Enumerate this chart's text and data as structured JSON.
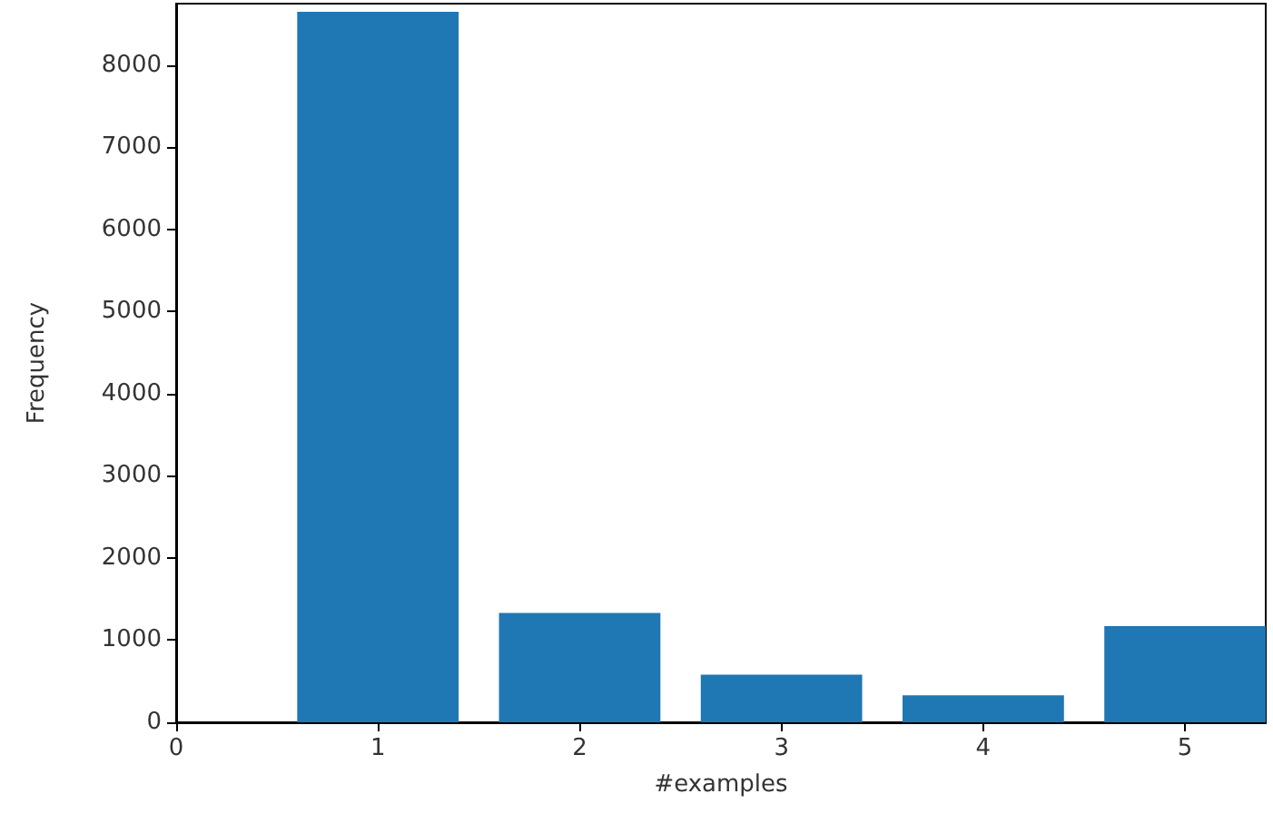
{
  "chart_data": {
    "type": "bar",
    "xlabel": "#examples",
    "ylabel": "Frequency",
    "x": [
      1,
      2,
      3,
      4,
      5
    ],
    "values": [
      8650,
      1330,
      580,
      330,
      1170
    ],
    "color": "#1f77b4",
    "xlim": [
      0,
      5.4
    ],
    "xticks": [
      0,
      1,
      2,
      3,
      4,
      5
    ],
    "ylim": [
      0,
      8750
    ],
    "yticks": [
      0,
      1000,
      2000,
      3000,
      4000,
      5000,
      6000,
      7000,
      8000
    ],
    "grid": false
  }
}
